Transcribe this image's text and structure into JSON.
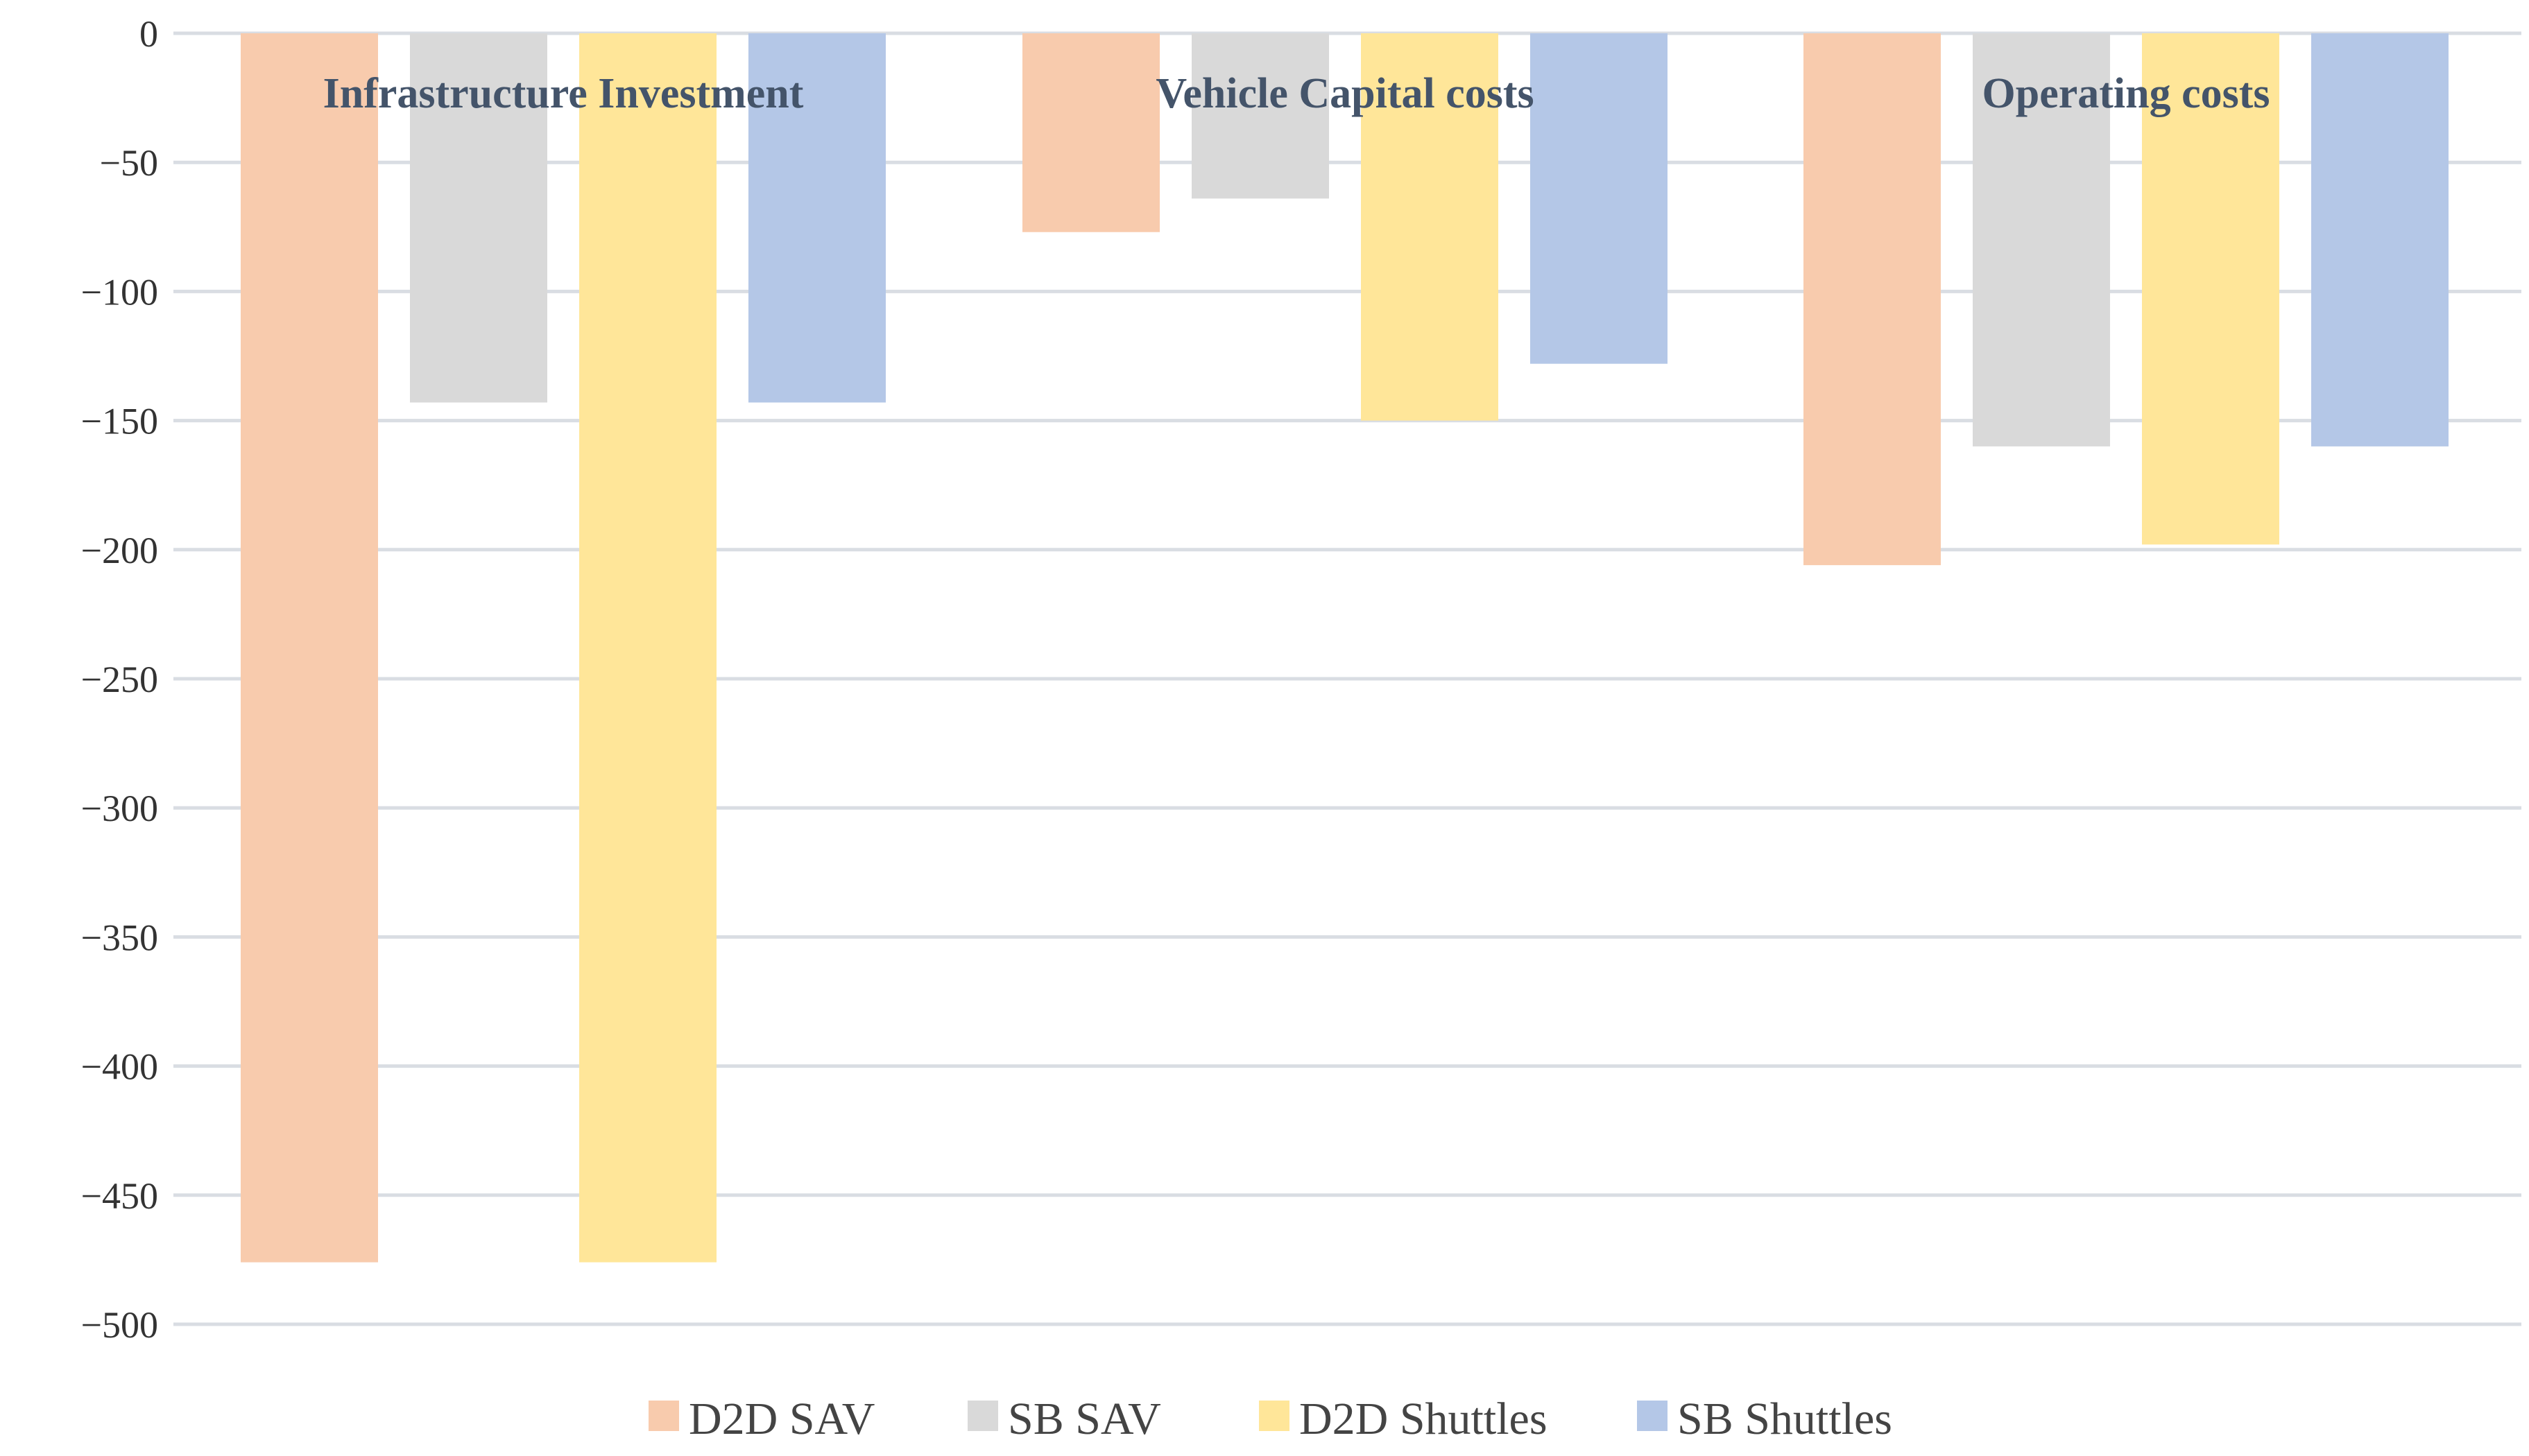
{
  "chart_data": {
    "type": "bar",
    "title": "",
    "xlabel": "",
    "ylabel": "",
    "ylim": [
      -500,
      0
    ],
    "y_ticks": [
      0,
      -50,
      -100,
      -150,
      -200,
      -250,
      -300,
      -350,
      -400,
      -450,
      -500
    ],
    "y_tick_labels": [
      "0",
      "−50",
      "−100",
      "−150",
      "−200",
      "−250",
      "−300",
      "−350",
      "−400",
      "−450",
      "−500"
    ],
    "grid": true,
    "legend_position": "bottom",
    "categories": [
      "Infrastructure Investment",
      "Vehicle Capital costs",
      "Operating costs"
    ],
    "series": [
      {
        "name": "D2D SAV",
        "color": "#f8cbad",
        "values": [
          -476,
          -77,
          -206
        ]
      },
      {
        "name": "SB SAV",
        "color": "#d9d9d9",
        "values": [
          -143,
          -64,
          -160
        ]
      },
      {
        "name": "D2D Shuttles",
        "color": "#ffe699",
        "values": [
          -476,
          -150,
          -198
        ]
      },
      {
        "name": "SB Shuttles",
        "color": "#b4c7e7",
        "values": [
          -143,
          -128,
          -160
        ]
      }
    ]
  }
}
